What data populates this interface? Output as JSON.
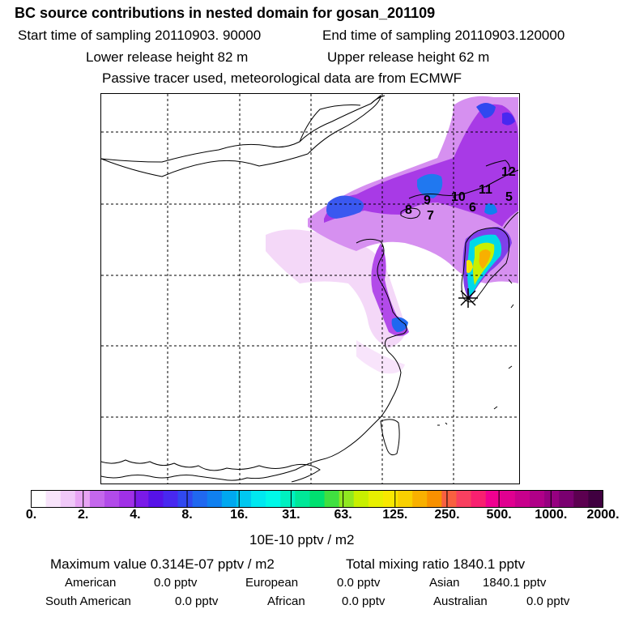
{
  "header": {
    "title": "BC  source contributions in nested domain for gosan_201109",
    "start": "Start time of sampling 20110903. 90000",
    "end": "End time of sampling 20110903.120000",
    "lower": "Lower release height   82 m",
    "upper": "Upper release height   62 m",
    "note": "Passive tracer used, meteorological data are from ECMWF"
  },
  "map": {
    "labels": [
      "12",
      "11",
      "10",
      "9",
      "8",
      "7",
      "6",
      "5"
    ],
    "receptor_symbol": "*"
  },
  "colorbar": {
    "ticks": [
      "0.",
      "2.",
      "4.",
      "8.",
      "16.",
      "31.",
      "63.",
      "125.",
      "250.",
      "500.",
      "1000.",
      "2000."
    ],
    "unit": "10E-10 pptv / m2",
    "colors": [
      "#ffffff",
      "#f8e4fb",
      "#f0c8f8",
      "#e8a4f4",
      "#c467ec",
      "#b24be9",
      "#a030e6",
      "#7a1ae8",
      "#5612e8",
      "#4828f0",
      "#3048f0",
      "#2068f0",
      "#1080f0",
      "#00a8f0",
      "#00c8f0",
      "#00e8f0",
      "#00f8e8",
      "#00f0c0",
      "#00e898",
      "#00e070",
      "#40e040",
      "#90e820",
      "#c8f000",
      "#e8f000",
      "#f8e800",
      "#f8d000",
      "#f8b000",
      "#f89000",
      "#f86040",
      "#f84060",
      "#f82070",
      "#f00090",
      "#e00090",
      "#c8008c",
      "#b00088",
      "#960080",
      "#7a0070",
      "#5c0050",
      "#400040"
    ]
  },
  "stats": {
    "max_label": "Maximum value  0.314E-07 pptv / m2",
    "total_label": "Total mixing ratio     1840.1 pptv",
    "rows": [
      [
        {
          "name": "American",
          "value": "0.0 pptv"
        },
        {
          "name": "European",
          "value": "0.0 pptv"
        },
        {
          "name": "Asian",
          "value": "1840.1 pptv"
        }
      ],
      [
        {
          "name": "South American",
          "value": "0.0 pptv"
        },
        {
          "name": "African",
          "value": "0.0 pptv"
        },
        {
          "name": "Australian",
          "value": "0.0 pptv"
        }
      ]
    ]
  }
}
